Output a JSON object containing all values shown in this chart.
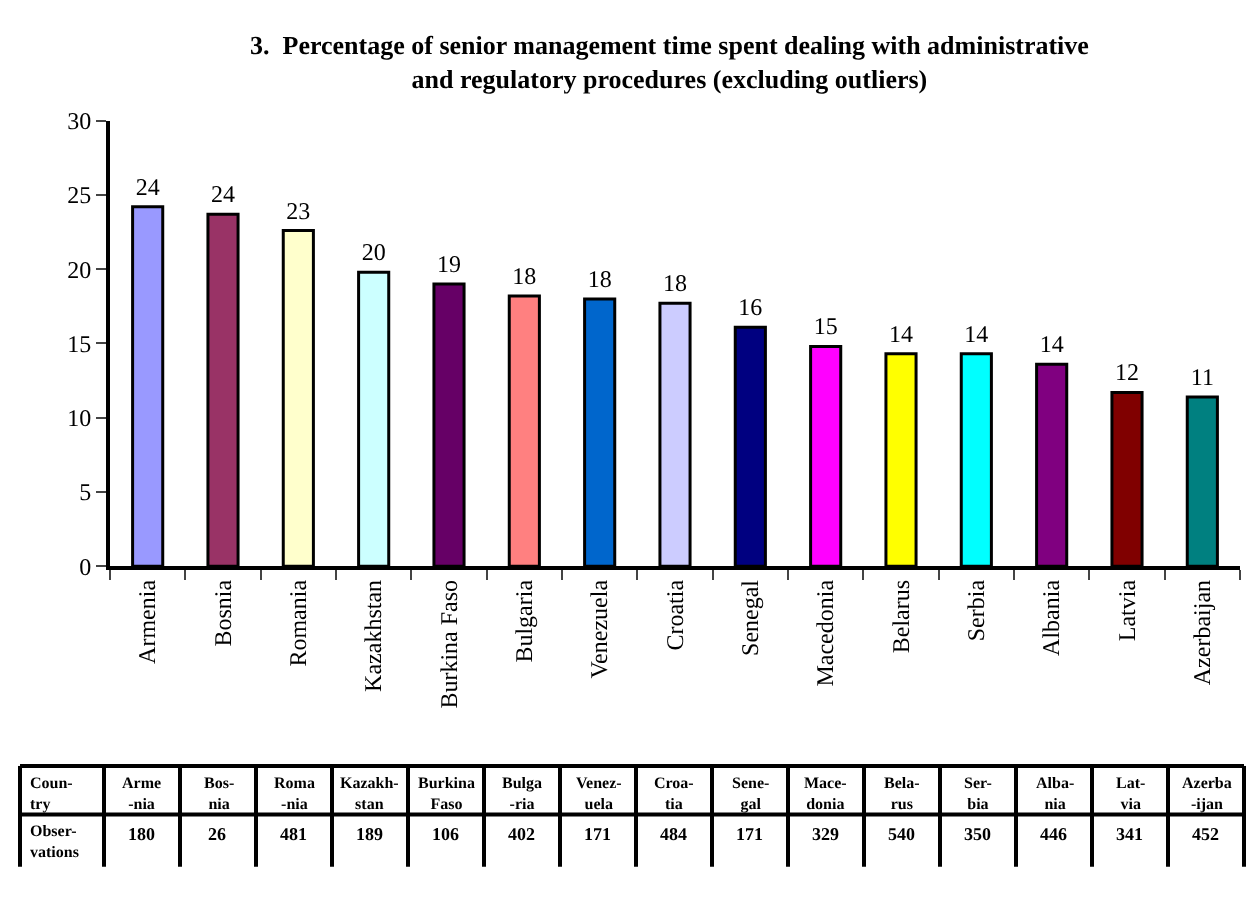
{
  "chart_data": [
    {
      "type": "bar",
      "title": "3.  Percentage of senior management time spent dealing with administrative\nand regulatory procedures (excluding outliers)",
      "categories": [
        "Armenia",
        "Bosnia",
        "Romania",
        "Kazakhstan",
        "Burkina Faso",
        "Bulgaria",
        "Venezuela",
        "Croatia",
        "Senegal",
        "Macedonia",
        "Belarus",
        "Serbia",
        "Albania",
        "Latvia",
        "Azerbaijan"
      ],
      "values": [
        24.2,
        23.7,
        22.6,
        19.8,
        19.0,
        18.2,
        18.0,
        17.7,
        16.1,
        14.8,
        14.3,
        14.3,
        13.6,
        11.7,
        11.4
      ],
      "value_labels": [
        "24",
        "24",
        "23",
        "20",
        "19",
        "18",
        "18",
        "18",
        "16",
        "15",
        "14",
        "14",
        "14",
        "12",
        "11"
      ],
      "colors": [
        "#9999ff",
        "#993366",
        "#ffffcc",
        "#ccffff",
        "#660066",
        "#ff8080",
        "#0066cc",
        "#ccccff",
        "#000080",
        "#ff00ff",
        "#ffff00",
        "#00ffff",
        "#800080",
        "#800000",
        "#008080"
      ],
      "ylim": [
        0,
        30
      ],
      "yticks": [
        0,
        5,
        10,
        15,
        20,
        25,
        30
      ]
    },
    {
      "type": "other",
      "data_labels": true,
      "xlabel": "Coun-\ntry",
      "ylabel": "Obser-\nvations",
      "categories": [
        "Arme\n-nia",
        "Bos-\nnia",
        "Roma\n-nia",
        "Kazakh-\nstan",
        "Burkina\nFaso",
        "Bulga\n-ria",
        "Venez-\nuela",
        "Croa-\ntia",
        "Sene-\ngal",
        "Mace-\ndonia",
        "Bela-\nrus",
        "Ser-\nbia",
        "Alba-\nnia",
        "Lat-\nvia",
        "Azerba\n-ijan"
      ],
      "values": [
        180,
        26,
        481,
        189,
        106,
        402,
        171,
        484,
        171,
        329,
        540,
        350,
        446,
        341,
        452
      ]
    }
  ]
}
